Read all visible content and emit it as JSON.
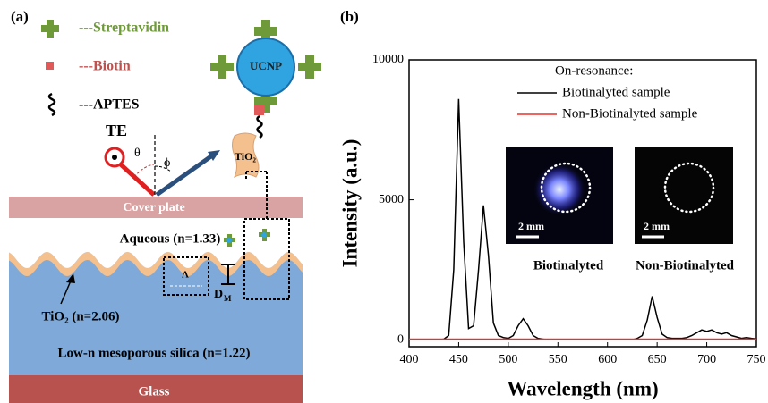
{
  "panel_a": {
    "label": "(a)",
    "legend": [
      "---Streptavidin",
      "---Biotin",
      "---APTES"
    ],
    "ucnp": "UCNP",
    "te": "TE",
    "theta": "θ",
    "phi": "ϕ",
    "tio2_particle": "TiO₂",
    "cover_plate": "Cover plate",
    "aqueous": "Aqueous (n=1.33)",
    "period": "Λ",
    "depth": "D",
    "depth_sub": "M",
    "tio2_layer": "TiO₂ (n=2.06)",
    "silica": "Low-n mesoporous silica (n=1.22)",
    "glass": "Glass"
  },
  "panel_b": {
    "label": "(b)",
    "inset_labels": [
      "Biotinalyted",
      "Non-Biotinalyted"
    ],
    "scale_bars": [
      "2 mm",
      "2 mm"
    ]
  },
  "chart_data": {
    "type": "line",
    "x_label": "Wavelength (nm)",
    "y_label": "Intensity (a.u.)",
    "legend_title": "On-resonance:",
    "x": [
      400,
      405,
      410,
      415,
      420,
      425,
      430,
      435,
      440,
      445,
      450,
      455,
      460,
      465,
      470,
      475,
      480,
      485,
      490,
      495,
      500,
      505,
      510,
      515,
      520,
      525,
      530,
      535,
      540,
      545,
      550,
      555,
      560,
      565,
      570,
      575,
      580,
      585,
      590,
      595,
      600,
      605,
      610,
      615,
      620,
      625,
      630,
      635,
      640,
      645,
      650,
      655,
      660,
      665,
      670,
      675,
      680,
      685,
      690,
      695,
      700,
      705,
      710,
      715,
      720,
      725,
      730,
      735,
      740,
      745,
      750
    ],
    "series": [
      {
        "name": "Biotinalyted sample",
        "color": "#000000",
        "values": [
          0,
          0,
          0,
          0,
          0,
          0,
          0,
          20,
          150,
          2500,
          8600,
          3500,
          400,
          500,
          2500,
          4800,
          3000,
          600,
          150,
          80,
          50,
          150,
          500,
          750,
          500,
          150,
          50,
          20,
          0,
          0,
          0,
          0,
          0,
          0,
          0,
          0,
          0,
          0,
          0,
          0,
          0,
          0,
          0,
          0,
          0,
          0,
          50,
          150,
          700,
          1550,
          800,
          200,
          80,
          50,
          50,
          50,
          80,
          150,
          250,
          350,
          300,
          350,
          250,
          200,
          250,
          150,
          100,
          50,
          80,
          50,
          30
        ]
      },
      {
        "name": "Non-Biotinalyted sample",
        "color": "#e8312a",
        "values": [
          20,
          20,
          20,
          20,
          20,
          20,
          20,
          20,
          20,
          20,
          20,
          20,
          20,
          20,
          20,
          20,
          20,
          20,
          20,
          20,
          20,
          20,
          20,
          20,
          20,
          20,
          20,
          20,
          20,
          20,
          20,
          20,
          20,
          20,
          20,
          20,
          20,
          20,
          20,
          20,
          20,
          20,
          20,
          20,
          20,
          20,
          20,
          20,
          20,
          20,
          20,
          20,
          20,
          20,
          20,
          20,
          20,
          20,
          20,
          20,
          20,
          20,
          20,
          20,
          20,
          20,
          20,
          20,
          20,
          20,
          20
        ]
      }
    ],
    "xlim": [
      400,
      750
    ],
    "ylim": [
      -250,
      10000
    ],
    "xticks": [
      400,
      450,
      500,
      550,
      600,
      650,
      700,
      750
    ],
    "yticks": [
      0,
      5000,
      10000
    ]
  }
}
